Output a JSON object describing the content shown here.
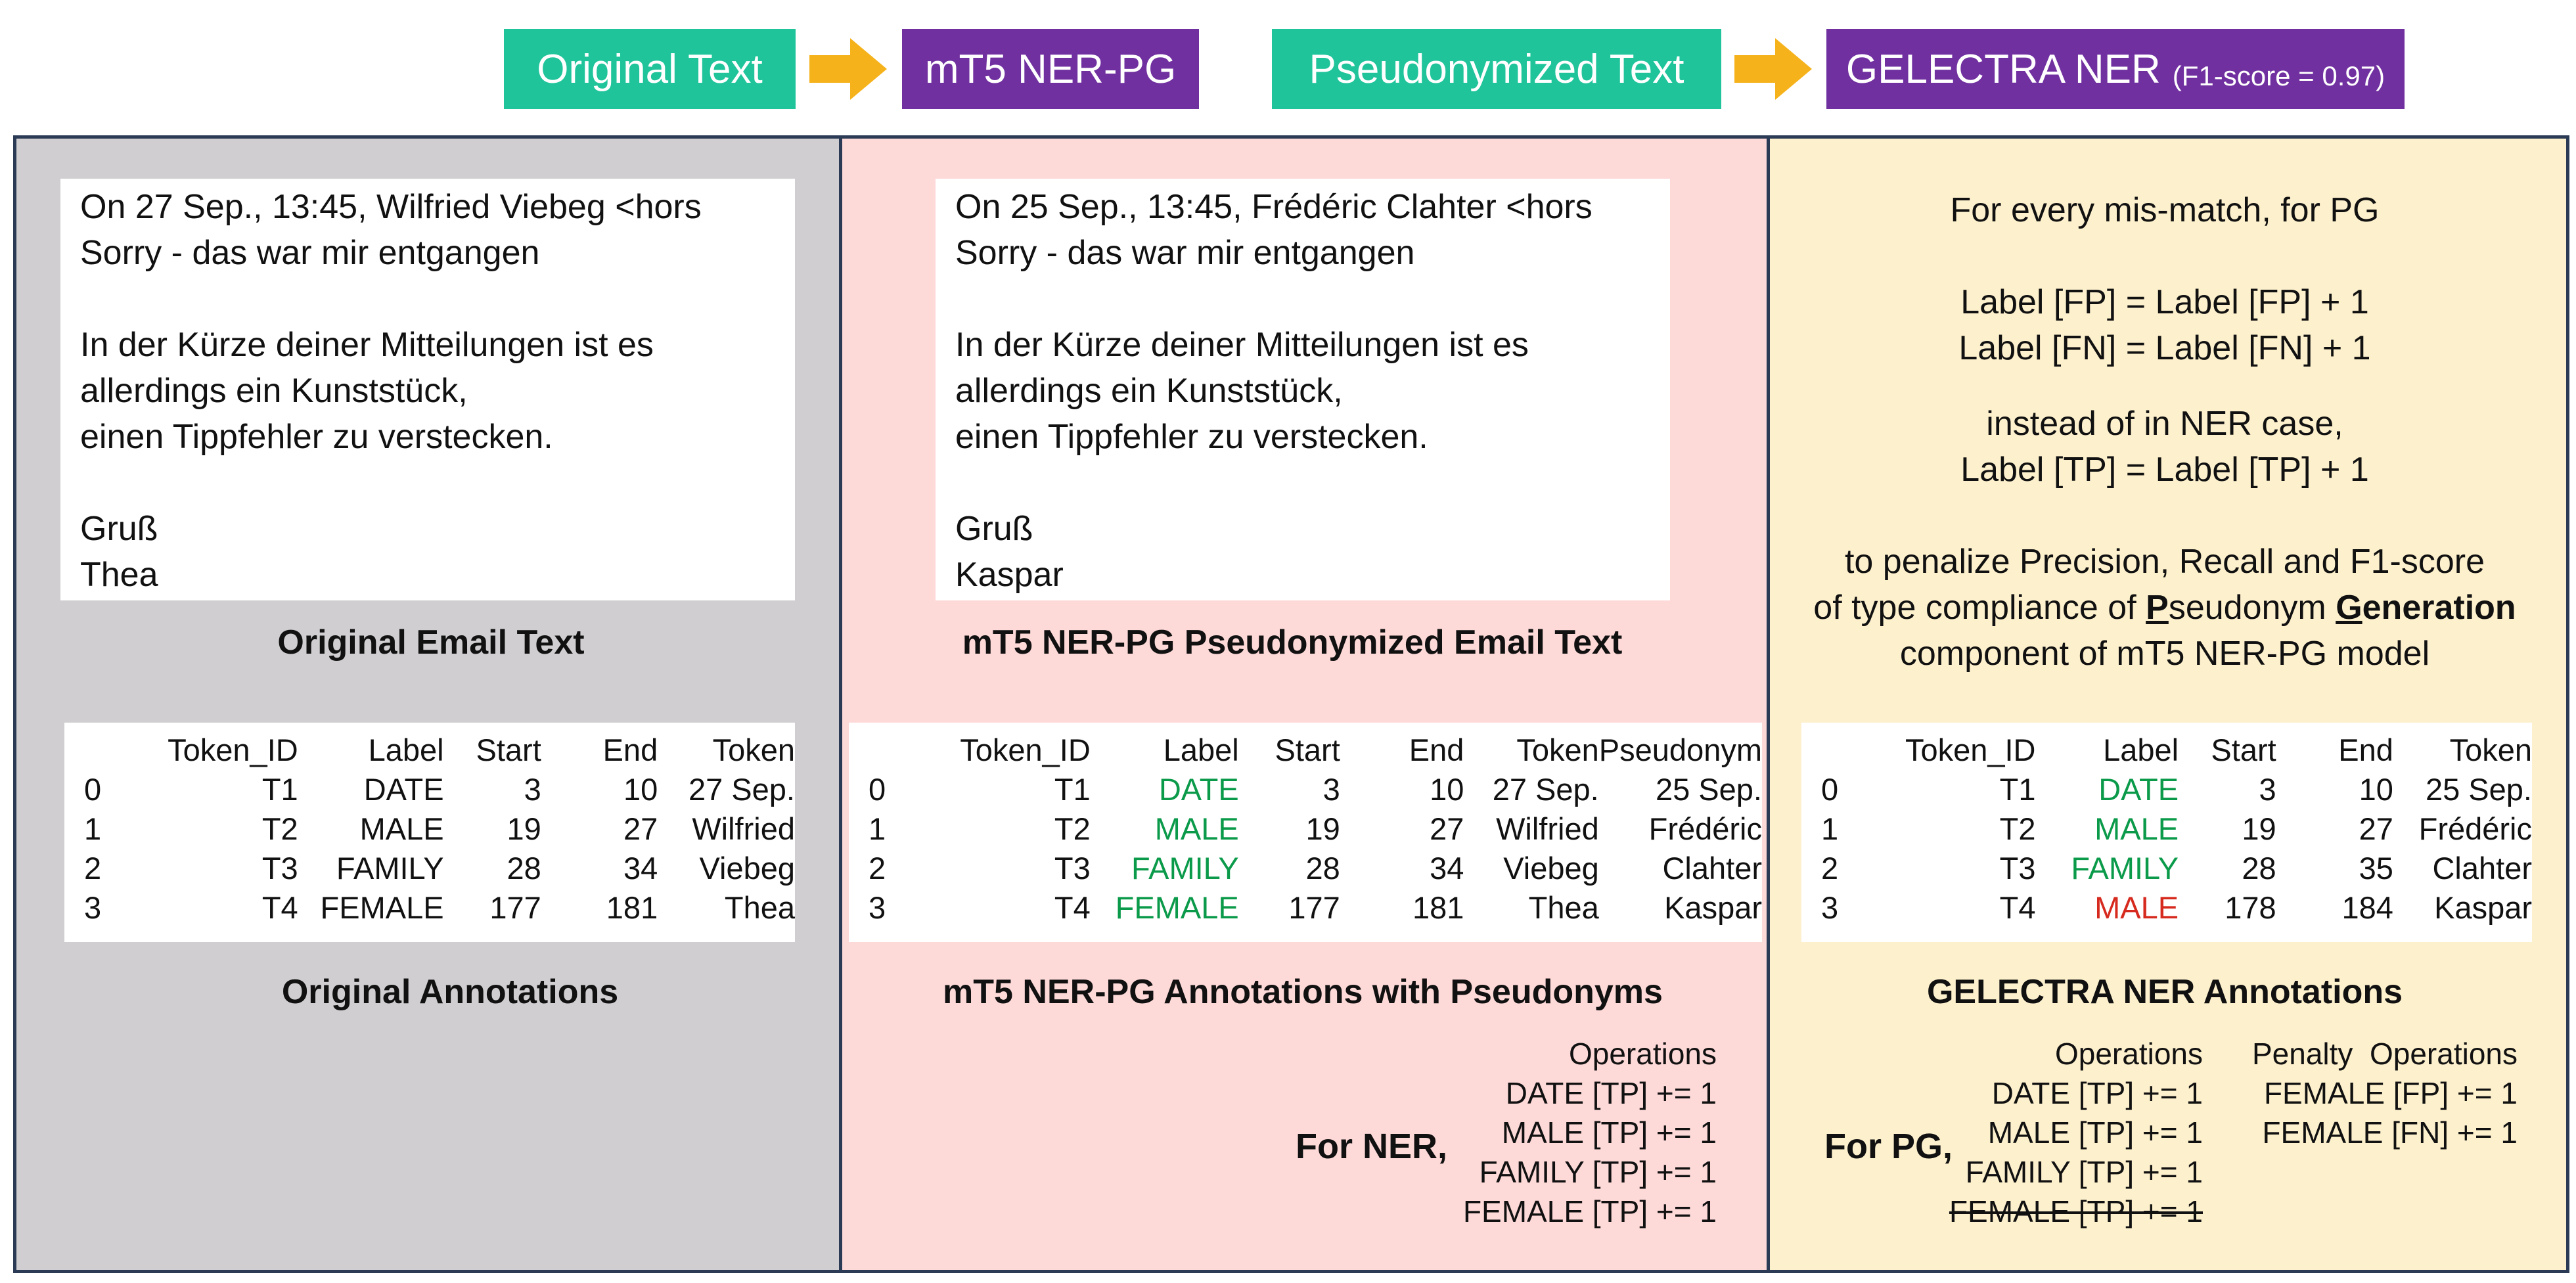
{
  "flow": {
    "step1": "Original Text",
    "step2": "mT5 NER-PG",
    "step3": "Pseudonymized Text",
    "step4": "GELECTRA NER",
    "step4_sub": "(F1-score = 0.97)"
  },
  "colors": {
    "teal": "#1fc49b",
    "purple": "#7030a0",
    "arrow": "#f5b21a",
    "gray_panel": "#d0ced0",
    "pink_panel": "#fdd9d8",
    "yellow_panel": "#fdf0cd",
    "correct_label": "#0a9a4a",
    "wrong_label": "#d62a1e"
  },
  "original": {
    "lines": [
      "On 27 Sep., 13:45, Wilfried Viebeg <hors",
      "Sorry - das war mir entgangen",
      "",
      "In der Kürze deiner Mitteilungen ist es",
      "allerdings ein Kunststück,",
      "einen Tippfehler zu verstecken.",
      "",
      "Gruß",
      "Thea"
    ],
    "caption": "Original Email Text",
    "table_caption": "Original Annotations",
    "headers": [
      "",
      "Token_ID",
      "Label",
      "Start",
      "End",
      "Token"
    ],
    "rows": [
      [
        "0",
        "T1",
        "DATE",
        "3",
        "10",
        "27 Sep."
      ],
      [
        "1",
        "T2",
        "MALE",
        "19",
        "27",
        "Wilfried"
      ],
      [
        "2",
        "T3",
        "FAMILY",
        "28",
        "34",
        "Viebeg"
      ],
      [
        "3",
        "T4",
        "FEMALE",
        "177",
        "181",
        "Thea"
      ]
    ]
  },
  "pseudo": {
    "lines": [
      "On 25 Sep., 13:45, Frédéric Clahter <hors",
      "Sorry - das war mir entgangen",
      "",
      "In der Kürze deiner Mitteilungen ist es",
      "allerdings ein Kunststück,",
      "einen Tippfehler zu verstecken.",
      "",
      "Gruß",
      "Kaspar"
    ],
    "caption": "mT5 NER-PG Pseudonymized Email Text",
    "table_caption": "mT5 NER-PG Annotations with Pseudonyms",
    "headers": [
      "",
      "Token_ID",
      "Label",
      "Start",
      "End",
      "Token",
      "Pseudonym"
    ],
    "rows": [
      [
        "0",
        "T1",
        "DATE",
        "3",
        "10",
        "27 Sep.",
        "25 Sep."
      ],
      [
        "1",
        "T2",
        "MALE",
        "19",
        "27",
        "Wilfried",
        "Frédéric"
      ],
      [
        "2",
        "T3",
        "FAMILY",
        "28",
        "34",
        "Viebeg",
        "Clahter"
      ],
      [
        "3",
        "T4",
        "FEMALE",
        "177",
        "181",
        "Thea",
        "Kaspar"
      ]
    ],
    "for_label": "For NER,",
    "ops_header": "Operations",
    "ops": [
      "DATE [TP] += 1",
      "MALE [TP] += 1",
      "FAMILY [TP] += 1",
      "FEMALE [TP] += 1"
    ]
  },
  "gelectra": {
    "text1": "For every mis-match, for PG",
    "text2": "Label [FP] = Label [FP] + 1",
    "text3": "Label [FN] = Label [FN] + 1",
    "text4": "instead of in NER case,",
    "text5": "Label [TP] = Label [TP] + 1",
    "text6": "to penalize Precision, Recall and F1-score",
    "text7_a": "of type compliance of ",
    "text7_p": "P",
    "text7_b": "seudonym ",
    "text7_g": "G",
    "text7_c": "eneration",
    "text8": "component of mT5 NER-PG model",
    "table_caption": "GELECTRA NER Annotations",
    "headers": [
      "",
      "Token_ID",
      "Label",
      "Start",
      "End",
      "Token"
    ],
    "rows": [
      [
        "0",
        "T1",
        "DATE",
        "3",
        "10",
        "25 Sep."
      ],
      [
        "1",
        "T2",
        "MALE",
        "19",
        "27",
        "Frédéric"
      ],
      [
        "2",
        "T3",
        "FAMILY",
        "28",
        "35",
        "Clahter"
      ],
      [
        "3",
        "T4",
        "MALE",
        "178",
        "184",
        "Kaspar"
      ]
    ],
    "for_label": "For PG,",
    "ops_header": "Operations",
    "ops": [
      "DATE [TP] += 1",
      "MALE [TP] += 1",
      "FAMILY [TP] += 1",
      "FEMALE [TP] += 1"
    ],
    "penalty_header": "Penalty  Operations",
    "penalty_ops": [
      "FEMALE [FP] += 1",
      "FEMALE [FN] += 1"
    ]
  }
}
